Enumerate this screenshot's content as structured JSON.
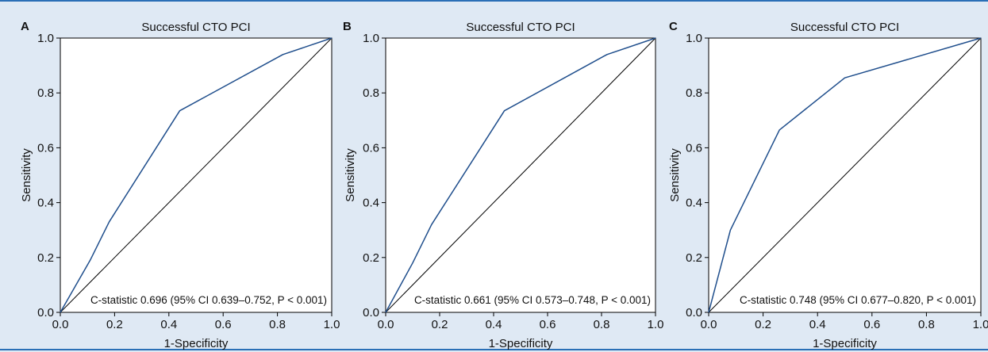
{
  "chart_data": [
    {
      "type": "line",
      "panel": "A",
      "title": "Successful CTO PCI",
      "xlabel": "1-Specificity",
      "ylabel": "Sensitivity",
      "xlim": [
        0,
        1
      ],
      "ylim": [
        0,
        1
      ],
      "x_ticks": [
        "0.0",
        "0.2",
        "0.4",
        "0.6",
        "0.8",
        "1.0"
      ],
      "y_ticks": [
        "0.0",
        "0.2",
        "0.4",
        "0.6",
        "0.8",
        "1.0"
      ],
      "series": [
        {
          "x": [
            0,
            0.11,
            0.18,
            0.44,
            0.82,
            1.0
          ],
          "y": [
            0,
            0.19,
            0.33,
            0.735,
            0.94,
            1.0
          ]
        }
      ],
      "reference_line": {
        "x": [
          0,
          1
        ],
        "y": [
          0,
          1
        ]
      },
      "annotation": "C-statistic 0.696 (95% CI 0.639–0.752, P < 0.001)"
    },
    {
      "type": "line",
      "panel": "B",
      "title": "Successful CTO PCI",
      "xlabel": "1-Specificity",
      "ylabel": "Sensitivity",
      "xlim": [
        0,
        1
      ],
      "ylim": [
        0,
        1
      ],
      "x_ticks": [
        "0.0",
        "0.2",
        "0.4",
        "0.6",
        "0.8",
        "1.0"
      ],
      "y_ticks": [
        "0.0",
        "0.2",
        "0.4",
        "0.6",
        "0.8",
        "1.0"
      ],
      "series": [
        {
          "x": [
            0,
            0.1,
            0.17,
            0.44,
            0.82,
            1.0
          ],
          "y": [
            0,
            0.18,
            0.32,
            0.735,
            0.94,
            1.0
          ]
        }
      ],
      "reference_line": {
        "x": [
          0,
          1
        ],
        "y": [
          0,
          1
        ]
      },
      "annotation": "C-statistic 0.661 (95% CI 0.573–0.748, P < 0.001)"
    },
    {
      "type": "line",
      "panel": "C",
      "title": "Successful CTO PCI",
      "xlabel": "1-Specificity",
      "ylabel": "Sensitivity",
      "xlim": [
        0,
        1
      ],
      "ylim": [
        0,
        1
      ],
      "x_ticks": [
        "0.0",
        "0.2",
        "0.4",
        "0.6",
        "0.8",
        "1.0"
      ],
      "y_ticks": [
        "0.0",
        "0.2",
        "0.4",
        "0.6",
        "0.8",
        "1.0"
      ],
      "series": [
        {
          "x": [
            0,
            0.08,
            0.26,
            0.5,
            1.0
          ],
          "y": [
            0,
            0.3,
            0.665,
            0.855,
            1.0
          ]
        }
      ],
      "reference_line": {
        "x": [
          0,
          1
        ],
        "y": [
          0,
          1
        ]
      },
      "annotation": "C-statistic 0.748 (95% CI 0.677–0.820, P < 0.001)"
    }
  ],
  "style": {
    "curve_color": "#1f4e8c",
    "reference_color": "#000000",
    "plot_background": "#ffffff",
    "figure_background": "#dfe9f4"
  }
}
